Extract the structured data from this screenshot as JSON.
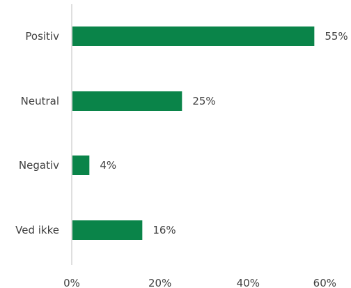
{
  "chart_data": {
    "type": "bar",
    "orientation": "horizontal",
    "title": "",
    "xlabel": "",
    "ylabel": "",
    "categories": [
      "Positiv",
      "Neutral",
      "Negativ",
      "Ved ikke"
    ],
    "values": [
      55,
      25,
      4,
      16
    ],
    "value_labels": [
      "55%",
      "25%",
      "4%",
      "16%"
    ],
    "xlim": [
      0,
      60
    ],
    "x_ticks": [
      0,
      20,
      40,
      60
    ],
    "x_tick_labels": [
      "0%",
      "20%",
      "40%",
      "60%"
    ],
    "grid": false,
    "legend": "none",
    "colors": {
      "bar": "#0a8449",
      "axis": "#bfbfbf",
      "text": "#404040"
    }
  }
}
